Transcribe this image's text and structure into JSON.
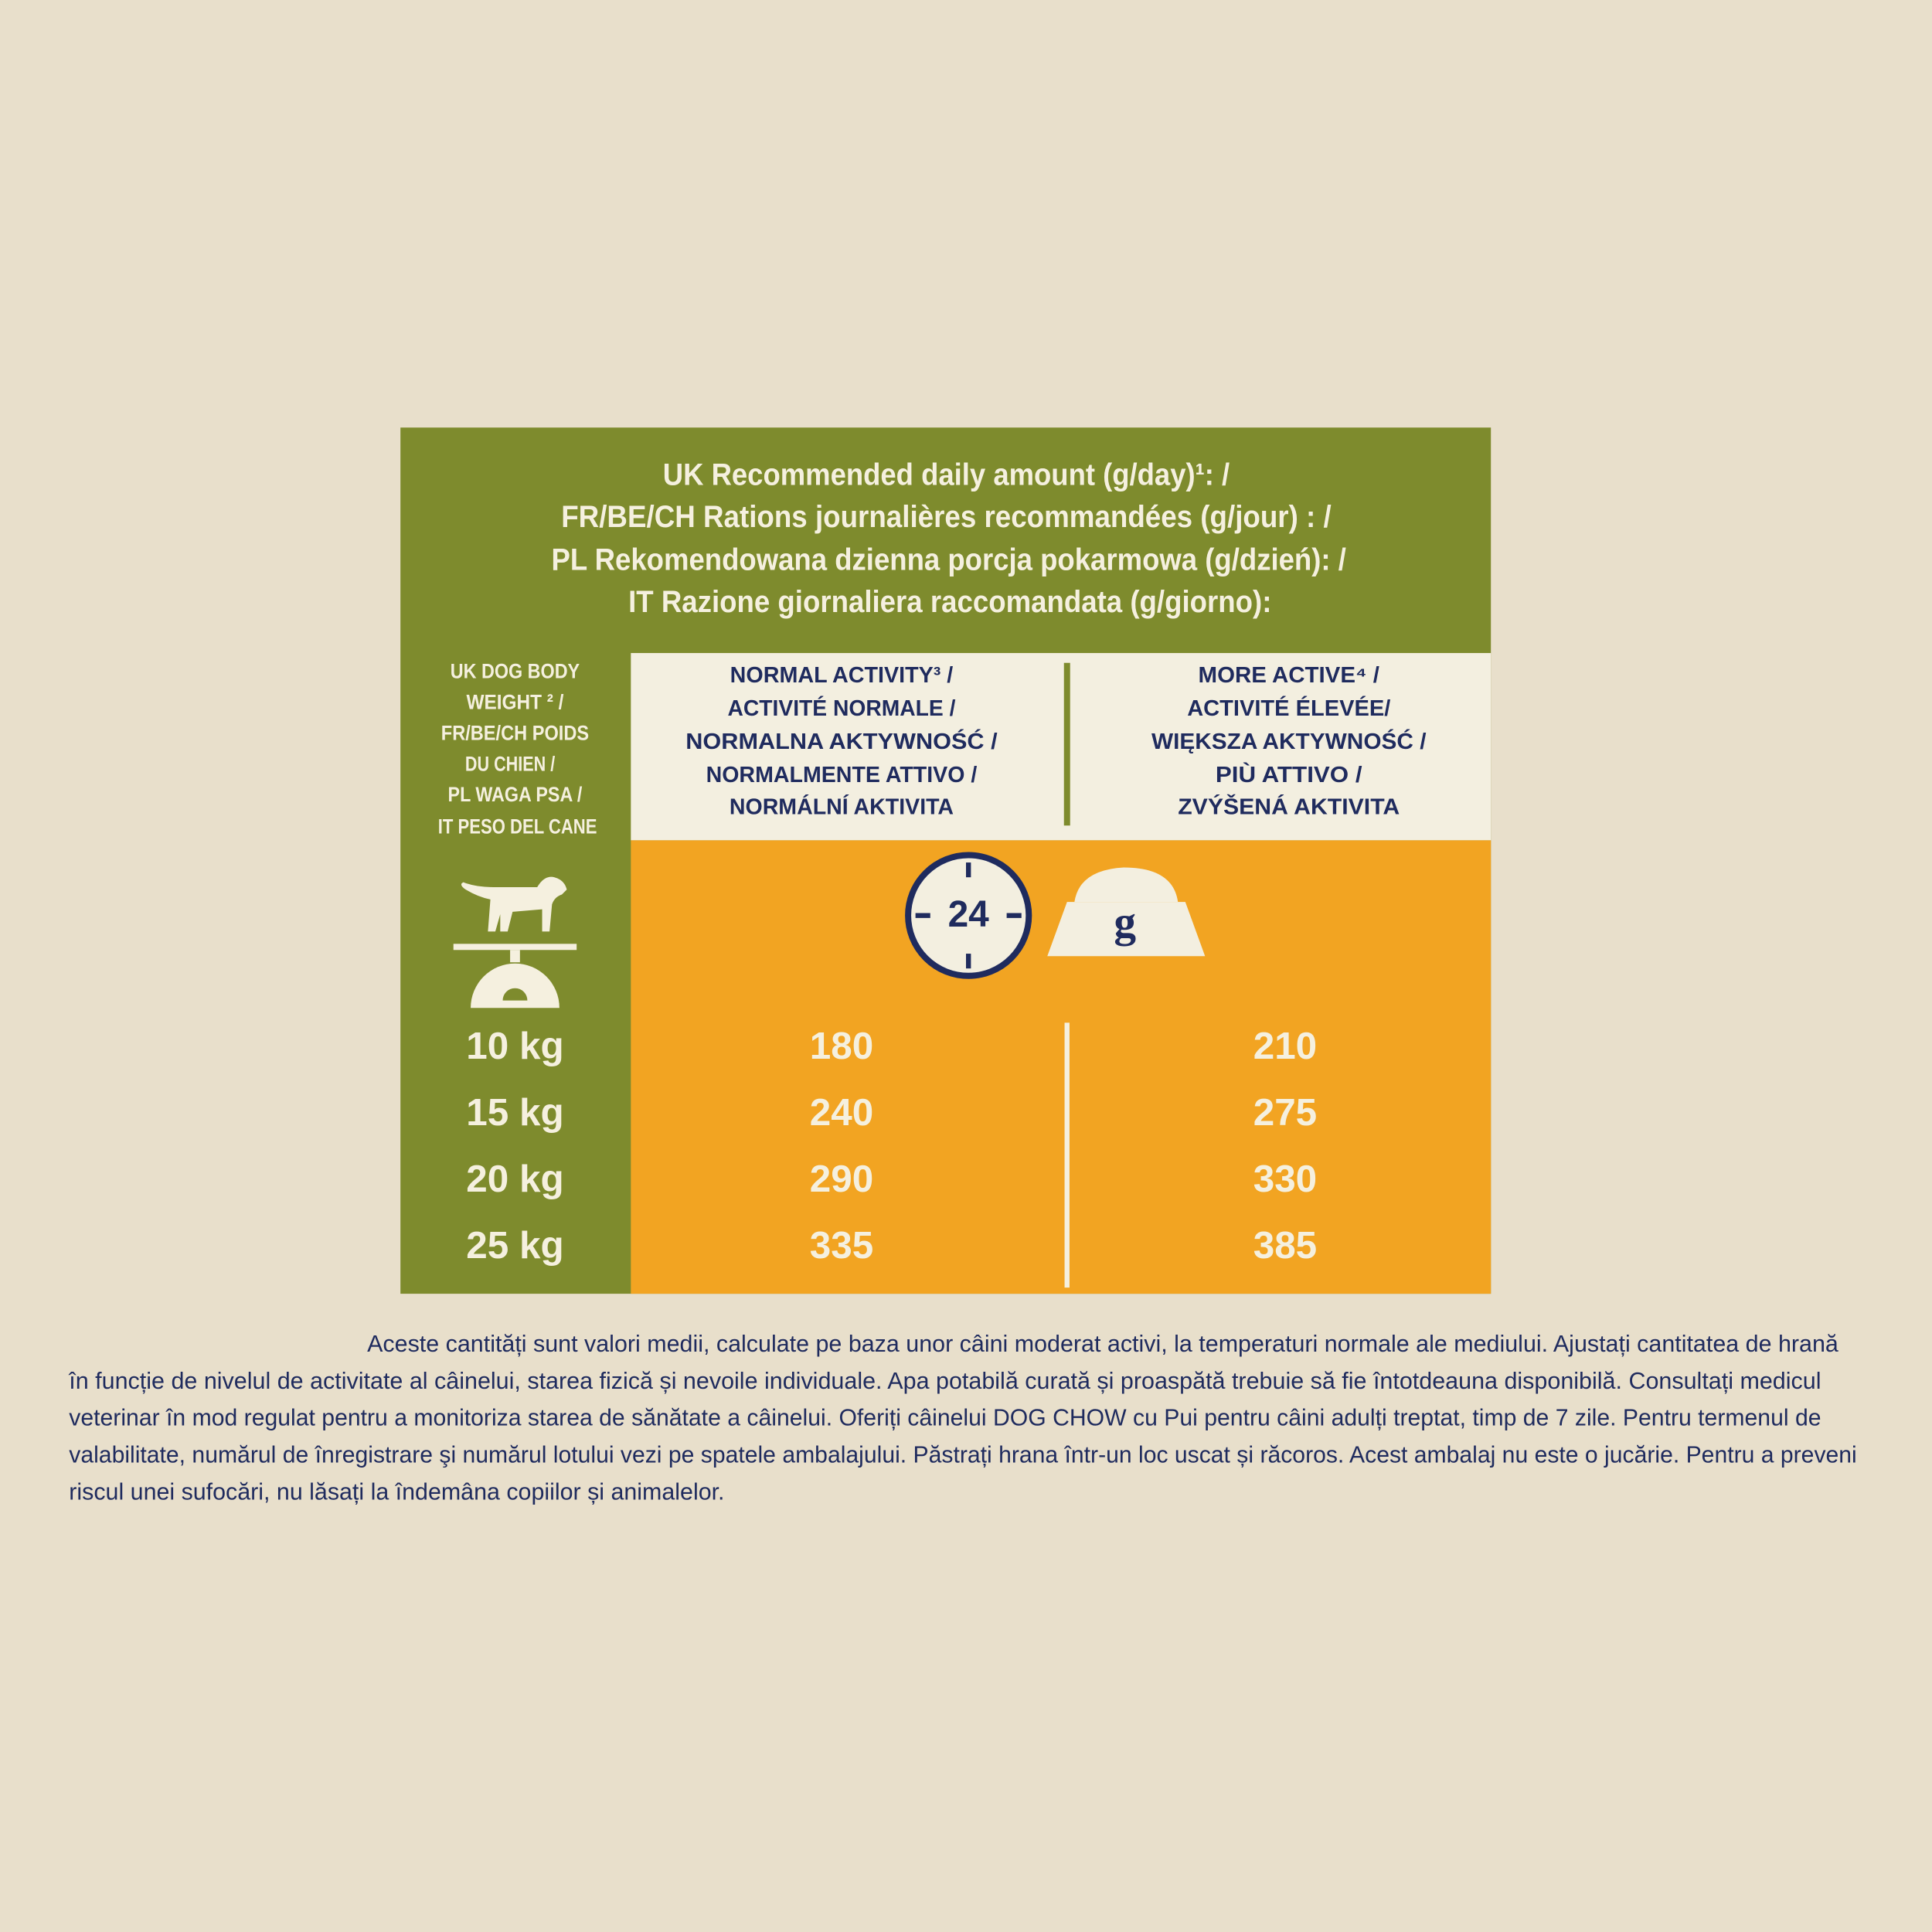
{
  "title": [
    "UK Recommended daily amount (g/day)¹: /",
    "FR/BE/CH Rations journalières recommandées (g/jour) : /",
    "PL Rekomendowana dzienna porcja pokarmowa (g/dzień): /",
    "IT Razione giornaliera raccomandata (g/giorno):"
  ],
  "table": {
    "weight_header": [
      "UK DOG BODY",
      "WEIGHT ² /",
      "FR/BE/CH POIDS",
      "DU CHIEN /",
      "PL WAGA PSA /",
      "IT PESO DEL CANE"
    ],
    "column_headers": [
      [
        "NORMAL ACTIVITY³ /",
        "ACTIVITÉ NORMALE /",
        "NORMALNA AKTYWNOŚĆ /",
        "NORMALMENTE ATTIVO /",
        "NORMÁLNÍ AKTIVITA"
      ],
      [
        "MORE ACTIVE⁴ /",
        "ACTIVITÉ ÉLEVÉE/",
        "WIĘKSZA AKTYWNOŚĆ /",
        "PIÙ ATTIVO /",
        "ZVÝŠENÁ AKTIVITA"
      ]
    ],
    "icons": {
      "clock": "24",
      "bowl": "g"
    },
    "rows": [
      [
        "10 kg",
        180,
        210
      ],
      [
        "15 kg",
        240,
        275
      ],
      [
        "20 kg",
        290,
        330
      ],
      [
        "25 kg",
        335,
        385
      ]
    ]
  },
  "footer": [
    "Aceste cantități sunt valori medii, calculate pe baza unor câini moderat activi, la temperaturi normale ale mediului. Ajustați cantitatea de hrană",
    "în funcție de nivelul de activitate al câinelui, starea fizică și nevoile individuale. Apa potabilă curată și proaspătă trebuie să fie întotdeauna disponibilă. Consultați medicul",
    "veterinar în mod regulat pentru a monitoriza starea de sănătate a câinelui. Oferiți câinelui DOG CHOW cu Pui pentru câini adulți treptat, timp de 7 zile. Pentru termenul de",
    "valabilitate, numărul de înregistrare şi numărul lotului vezi pe spatele ambalajului. Păstrați hrana într-un loc uscat și răcoros. Acest ambalaj nu este o jucărie. Pentru a preveni",
    "riscul unei sufocări, nu lăsați la îndemâna copiilor și animalelor."
  ]
}
